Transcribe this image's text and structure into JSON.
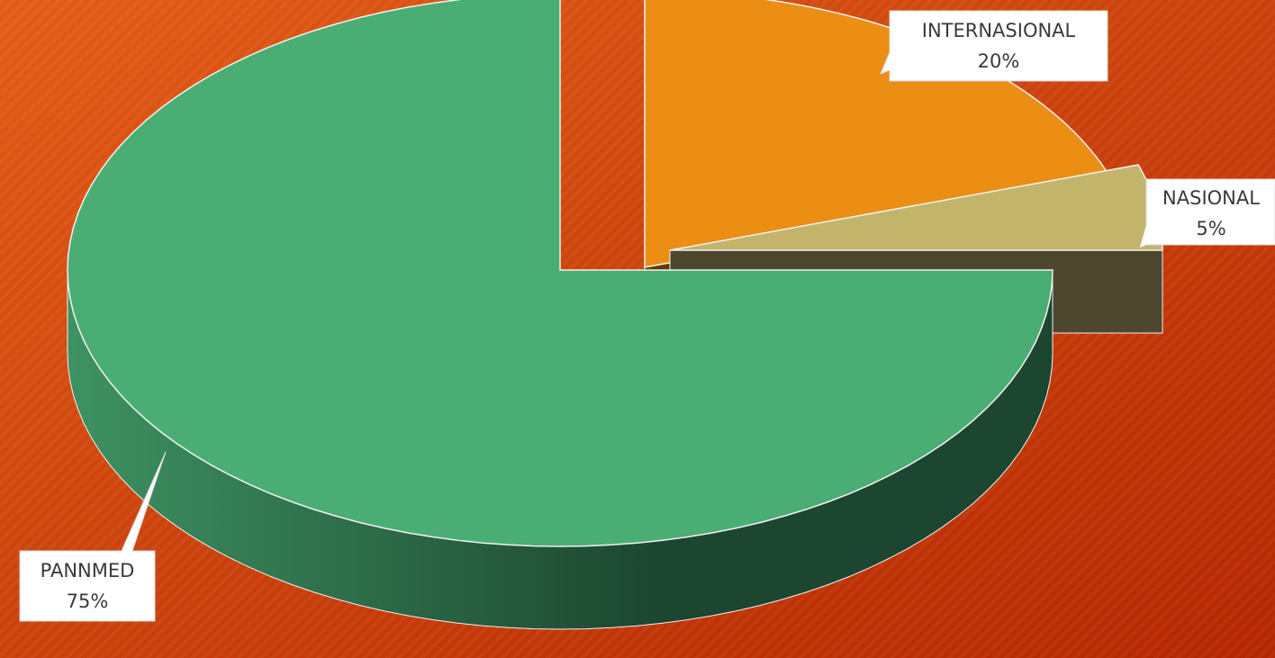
{
  "colors": {
    "background_start": "#e25c16",
    "background_end": "#b42600",
    "pannmed_top": "#4aae74",
    "pannmed_side_light": "#3e9262",
    "pannmed_side_dark": "#1c4630",
    "internasional_top": "#ec8e13",
    "internasional_side": "#633803",
    "nasional_top": "#c3b46c",
    "nasional_side": "#4d4730",
    "slice_edge": "#f1f1f1",
    "label_box": "#ffffff"
  },
  "chart_data": {
    "type": "pie",
    "style": "3d-exploded",
    "title": "",
    "legend": "none",
    "slices": [
      {
        "name": "PANNMED",
        "value": 75,
        "label": "75%"
      },
      {
        "name": "INTERNASIONAL",
        "value": 20,
        "label": "20%"
      },
      {
        "name": "NASIONAL",
        "value": 5,
        "label": "5%"
      }
    ]
  }
}
